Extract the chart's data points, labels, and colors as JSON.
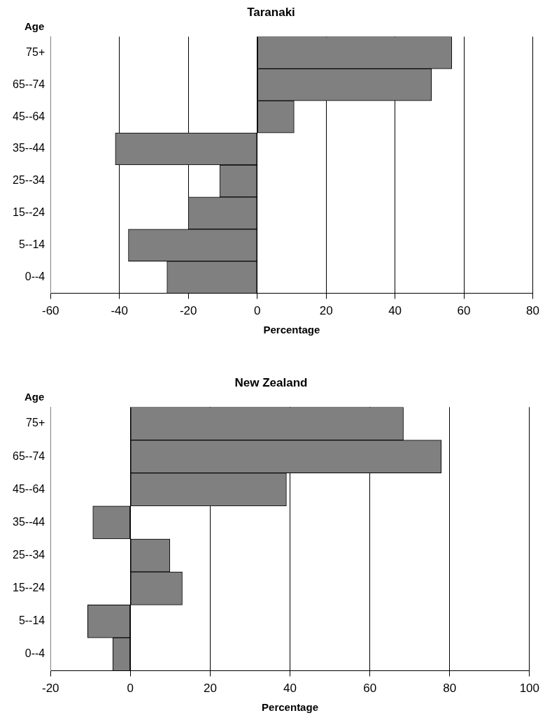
{
  "chart_data": [
    {
      "type": "bar",
      "orientation": "horizontal",
      "title": "Taranaki",
      "ylabel": "Age",
      "xlabel": "Percentage",
      "categories": [
        "75+",
        "65--74",
        "45--64",
        "35--44",
        "25--34",
        "15--24",
        "5--14",
        "0--4"
      ],
      "values": [
        56.5,
        50.6,
        10.7,
        -41.2,
        -10.9,
        -20,
        -37.4,
        -26.2
      ],
      "color": "#808080",
      "xlim": [
        -60,
        80
      ],
      "xticks": [
        -60,
        -40,
        -20,
        0,
        20,
        40,
        60,
        80
      ],
      "grid": "x",
      "legend": false
    },
    {
      "type": "bar",
      "orientation": "horizontal",
      "title": "New Zealand",
      "ylabel": "Age",
      "xlabel": "Percentage",
      "categories": [
        "75+",
        "65--74",
        "45--64",
        "35--44",
        "25--34",
        "15--24",
        "5--14",
        "0--4"
      ],
      "values": [
        68.4,
        77.9,
        39.1,
        -9.4,
        9.9,
        13,
        -10.7,
        -4.4
      ],
      "color": "#808080",
      "xlim": [
        -20,
        100
      ],
      "xticks": [
        -20,
        0,
        20,
        40,
        60,
        80,
        100
      ],
      "grid": "x",
      "legend": false
    }
  ]
}
